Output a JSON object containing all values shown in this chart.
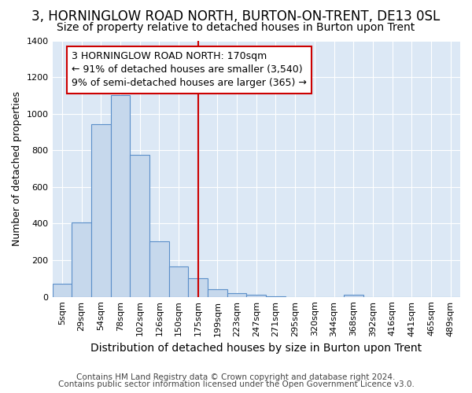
{
  "title": "3, HORNINGLOW ROAD NORTH, BURTON-ON-TRENT, DE13 0SL",
  "subtitle": "Size of property relative to detached houses in Burton upon Trent",
  "xlabel": "Distribution of detached houses by size in Burton upon Trent",
  "ylabel": "Number of detached properties",
  "footer_line1": "Contains HM Land Registry data © Crown copyright and database right 2024.",
  "footer_line2": "Contains public sector information licensed under the Open Government Licence v3.0.",
  "categories": [
    "5sqm",
    "29sqm",
    "54sqm",
    "78sqm",
    "102sqm",
    "126sqm",
    "150sqm",
    "175sqm",
    "199sqm",
    "223sqm",
    "247sqm",
    "271sqm",
    "295sqm",
    "320sqm",
    "344sqm",
    "368sqm",
    "392sqm",
    "416sqm",
    "441sqm",
    "465sqm",
    "489sqm"
  ],
  "values": [
    70,
    405,
    945,
    1100,
    775,
    305,
    165,
    103,
    40,
    18,
    13,
    5,
    0,
    0,
    0,
    10,
    0,
    0,
    0,
    0,
    0
  ],
  "bar_color": "#c6d8ec",
  "bar_edge_color": "#5b8fc9",
  "annotation_box_text": "3 HORNINGLOW ROAD NORTH: 170sqm\n← 91% of detached houses are smaller (3,540)\n9% of semi-detached houses are larger (365) →",
  "vline_x": 7.0,
  "vline_color": "#cc0000",
  "ylim": [
    0,
    1400
  ],
  "yticks": [
    0,
    200,
    400,
    600,
    800,
    1000,
    1200,
    1400
  ],
  "fig_background": "#ffffff",
  "plot_background": "#dce8f5",
  "grid_color": "#ffffff",
  "title_fontsize": 12,
  "subtitle_fontsize": 10,
  "xlabel_fontsize": 10,
  "ylabel_fontsize": 9,
  "tick_fontsize": 8,
  "annotation_fontsize": 9,
  "footer_fontsize": 7.5
}
